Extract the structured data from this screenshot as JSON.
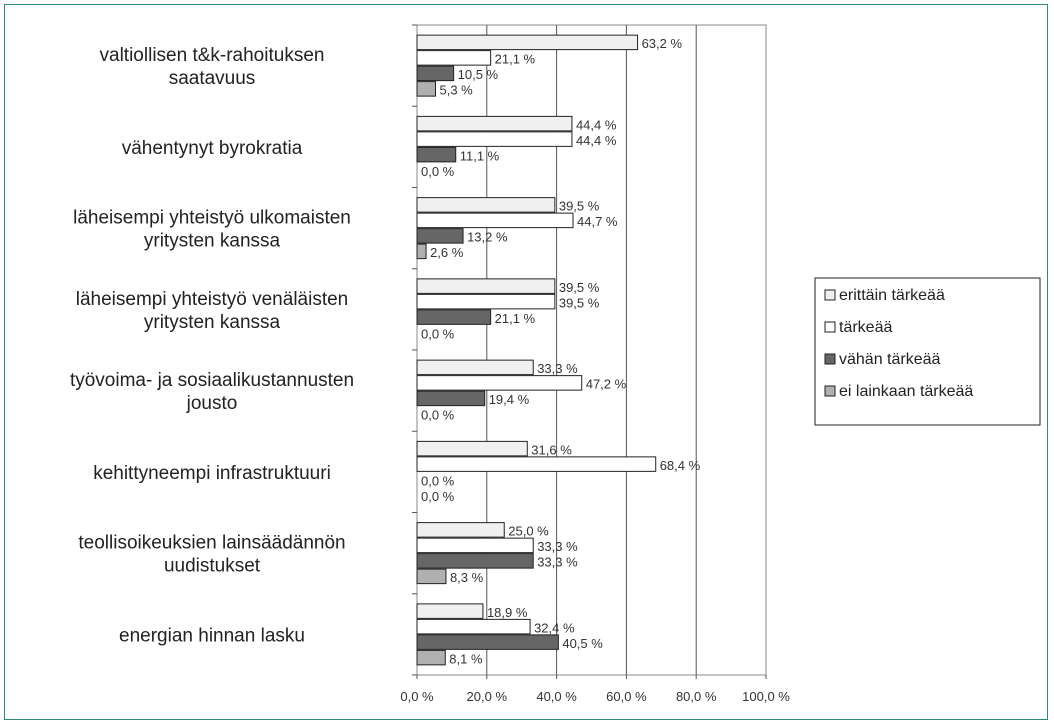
{
  "chart_data": {
    "type": "bar",
    "orientation": "horizontal",
    "categories": [
      [
        "valtiollisen t&k-rahoituksen",
        "saatavuus"
      ],
      [
        "vähentynyt byrokratia"
      ],
      [
        "läheisempi yhteistyö ulkomaisten",
        "yritysten kanssa"
      ],
      [
        "läheisempi yhteistyö venäläisten",
        "yritysten kanssa"
      ],
      [
        "työvoima- ja sosiaalikustannusten",
        "jousto"
      ],
      [
        "kehittyneempi infrastruktuuri"
      ],
      [
        "teollisoikeuksien lainsäädännön",
        "uudistukset"
      ],
      [
        "energian hinnan lasku"
      ]
    ],
    "series": [
      {
        "name": "erittäin tärkeää",
        "color": "#f0f0f0",
        "values": [
          63.2,
          44.4,
          39.5,
          39.5,
          33.3,
          31.6,
          25.0,
          18.9
        ],
        "labels": [
          "63,2 %",
          "44,4 %",
          "39,5 %",
          "39,5 %",
          "33,3 %",
          "31,6 %",
          "25,0 %",
          "18,9 %"
        ]
      },
      {
        "name": "tärkeää",
        "color": "#ffffff",
        "values": [
          21.1,
          44.4,
          44.7,
          39.5,
          47.2,
          68.4,
          33.3,
          32.4
        ],
        "labels": [
          "21,1 %",
          "44,4 %",
          "44,7 %",
          "39,5 %",
          "47,2 %",
          "68,4 %",
          "33,3 %",
          "32,4 %"
        ]
      },
      {
        "name": "vähän tärkeää",
        "color": "#666666",
        "values": [
          10.5,
          11.1,
          13.2,
          21.1,
          19.4,
          0.0,
          33.3,
          40.5
        ],
        "labels": [
          "10,5 %",
          "11,1 %",
          "13,2 %",
          "21,1 %",
          "19,4 %",
          "0,0 %",
          "33,3 %",
          "40,5 %"
        ]
      },
      {
        "name": "ei lainkaan tärkeää",
        "color": "#b0b0b0",
        "values": [
          5.3,
          0.0,
          2.6,
          0.0,
          0.0,
          0.0,
          8.3,
          8.1
        ],
        "labels": [
          "5,3 %",
          "0,0 %",
          "2,6 %",
          "0,0 %",
          "0,0 %",
          "0,0 %",
          "8,3 %",
          "8,1 %"
        ]
      }
    ],
    "xlim": [
      0,
      100
    ],
    "xticks": [
      0,
      20,
      40,
      60,
      80,
      100
    ],
    "xtick_labels": [
      "0,0 %",
      "20,0 %",
      "40,0 %",
      "60,0 %",
      "80,0 %",
      "100,0 %"
    ],
    "grid": "vertical",
    "legend_position": "right",
    "title": "",
    "xlabel": "",
    "ylabel": ""
  }
}
